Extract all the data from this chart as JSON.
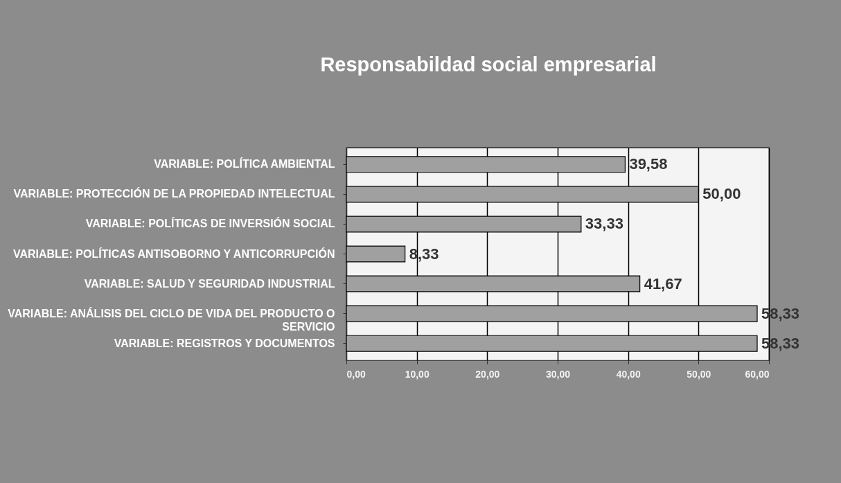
{
  "chart_data": {
    "type": "bar",
    "orientation": "horizontal",
    "title": "Responsabildad social empresarial",
    "categories": [
      "VARIABLE: POLÍTICA AMBIENTAL",
      "VARIABLE: PROTECCIÓN DE LA PROPIEDAD INTELECTUAL",
      "VARIABLE: POLÍTICAS DE INVERSIÓN SOCIAL",
      "VARIABLE: POLÍTICAS ANTISOBORNO Y ANTICORRUPCIÓN",
      "VARIABLE: SALUD Y SEGURIDAD INDUSTRIAL",
      "VARIABLE: ANÁLISIS DEL CICLO DE VIDA DEL PRODUCTO O SERVICIO",
      "VARIABLE: REGISTROS Y DOCUMENTOS"
    ],
    "values": [
      39.58,
      50.0,
      33.33,
      8.33,
      41.67,
      58.33,
      58.33
    ],
    "value_labels": [
      "39,58",
      "50,00",
      "33,33",
      "8,33",
      "41,67",
      "58,33",
      "58,33"
    ],
    "color": "#a0a0a0",
    "xlim": [
      0,
      60
    ],
    "xticks": [
      {
        "value": 0,
        "label": "0,00"
      },
      {
        "value": 10,
        "label": "10,00"
      },
      {
        "value": 20,
        "label": "20,00"
      },
      {
        "value": 30,
        "label": "30,00"
      },
      {
        "value": 40,
        "label": "40,00"
      },
      {
        "value": 50,
        "label": "50,00"
      },
      {
        "value": 60,
        "label": "60,00"
      }
    ],
    "grid": "x"
  }
}
